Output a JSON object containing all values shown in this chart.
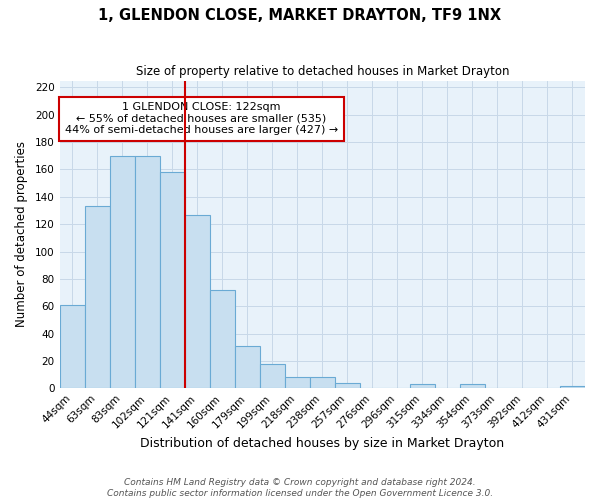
{
  "title": "1, GLENDON CLOSE, MARKET DRAYTON, TF9 1NX",
  "subtitle": "Size of property relative to detached houses in Market Drayton",
  "xlabel": "Distribution of detached houses by size in Market Drayton",
  "ylabel": "Number of detached properties",
  "footer_lines": [
    "Contains HM Land Registry data © Crown copyright and database right 2024.",
    "Contains public sector information licensed under the Open Government Licence 3.0."
  ],
  "bar_labels": [
    "44sqm",
    "63sqm",
    "83sqm",
    "102sqm",
    "121sqm",
    "141sqm",
    "160sqm",
    "179sqm",
    "199sqm",
    "218sqm",
    "238sqm",
    "257sqm",
    "276sqm",
    "296sqm",
    "315sqm",
    "334sqm",
    "354sqm",
    "373sqm",
    "392sqm",
    "412sqm",
    "431sqm"
  ],
  "bar_values": [
    61,
    133,
    170,
    170,
    158,
    127,
    72,
    31,
    18,
    8,
    8,
    4,
    0,
    0,
    3,
    0,
    3,
    0,
    0,
    0,
    2
  ],
  "bar_color": "#c8dff0",
  "bar_edge_color": "#6aaad4",
  "red_line_x": 4.5,
  "red_line_color": "#cc0000",
  "ylim": [
    0,
    225
  ],
  "yticks": [
    0,
    20,
    40,
    60,
    80,
    100,
    120,
    140,
    160,
    180,
    200,
    220
  ],
  "annotation_text": "1 GLENDON CLOSE: 122sqm\n← 55% of detached houses are smaller (535)\n44% of semi-detached houses are larger (427) →",
  "box_edge_color": "#cc0000",
  "grid_color": "#c8d8e8",
  "bg_color": "#e8f2fa",
  "title_fontsize": 10.5,
  "subtitle_fontsize": 8.5,
  "xlabel_fontsize": 9,
  "ylabel_fontsize": 8.5,
  "tick_fontsize": 7.5,
  "ann_fontsize": 8,
  "footer_fontsize": 6.5
}
